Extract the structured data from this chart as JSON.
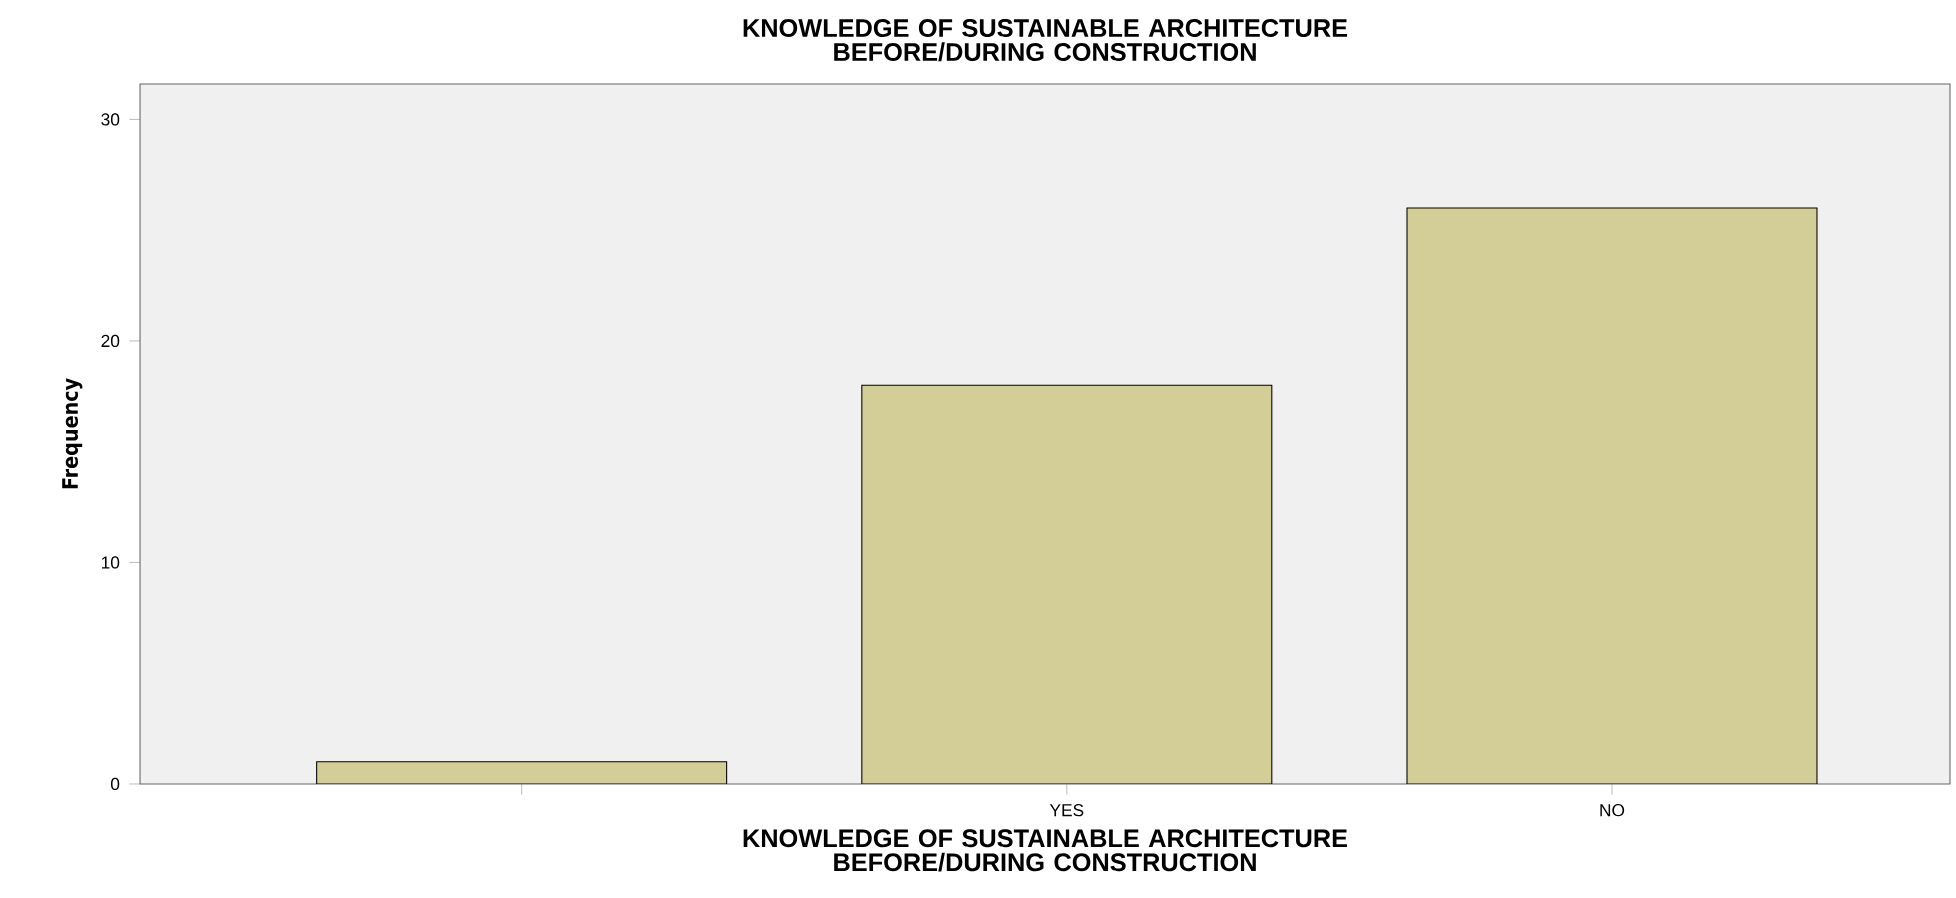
{
  "chart_data": {
    "type": "bar",
    "title": "KNOWLEDGE OF SUSTAINABLE ARCHITECTURE BEFORE/DURING CONSTRUCTION",
    "xlabel": "KNOWLEDGE OF SUSTAINABLE ARCHITECTURE BEFORE/DURING CONSTRUCTION",
    "ylabel": "Frequency",
    "categories": [
      null,
      "YES",
      "NO"
    ],
    "values": [
      1,
      18,
      26
    ],
    "color": "#d3ce97",
    "ylim": [
      0,
      31.6
    ],
    "yticks": [
      0,
      10,
      20,
      30
    ],
    "grid": false
  }
}
